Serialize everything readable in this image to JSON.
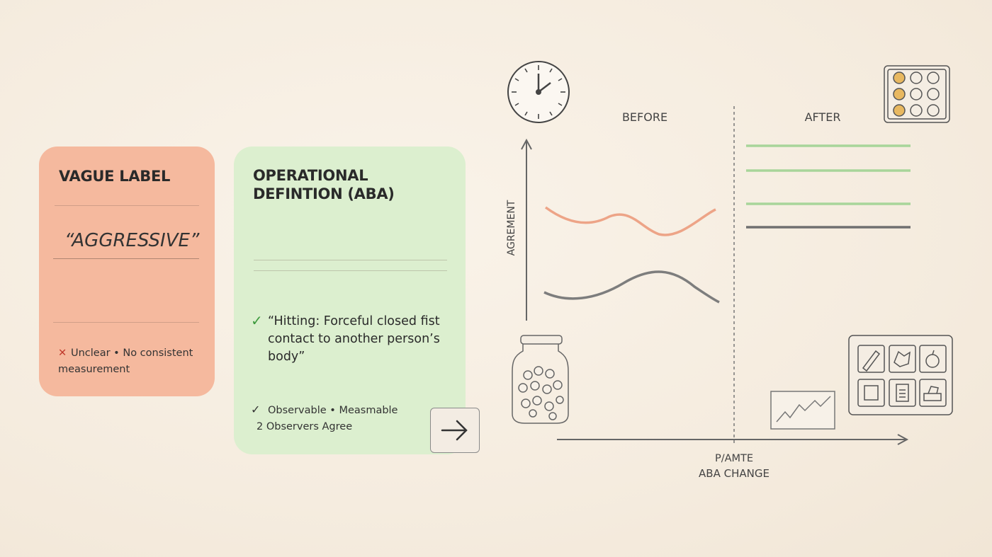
{
  "cards": [
    {
      "title": "VAGUE LABEL",
      "term": "“AGGRESSIVE”",
      "note": "Unclear • No consistent measurement"
    },
    {
      "title": "OPERATIONAL DEFINTION (ABA)",
      "definition": "“Hitting: Forceful closed fist contact to another person’s body”",
      "notes": [
        "Observable • Measmable",
        "2 Observers Agree"
      ]
    }
  ],
  "diagram": {
    "before_label": "BEFORE",
    "after_label": "AFTER",
    "y_axis_label": "AGREMENT",
    "x_axis_labels": [
      "P/AMTE",
      "ABA CHANGE"
    ]
  }
}
